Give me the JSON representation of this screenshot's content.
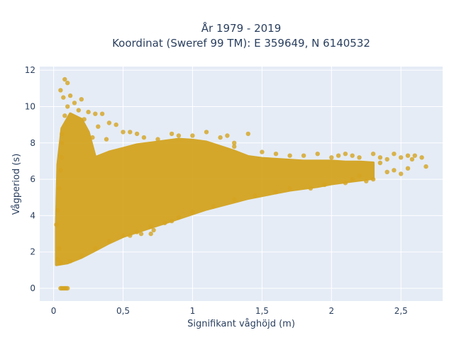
{
  "chart_data": {
    "type": "scatter",
    "title_line1": "År 1979 - 2019",
    "title_line2": "Koordinat (Sweref 99 TM): E 359649, N 6140532",
    "xlabel": "Signifikant våghöjd (m)",
    "ylabel": "Vågperiod (s)",
    "xlim": [
      -0.1,
      2.8
    ],
    "ylim": [
      -0.7,
      12.2
    ],
    "x_ticks": [
      0,
      0.5,
      1,
      1.5,
      2,
      2.5
    ],
    "x_tick_labels": [
      "0",
      "0,5",
      "1",
      "1,5",
      "2",
      "2,5"
    ],
    "y_ticks": [
      0,
      2,
      4,
      6,
      8,
      10,
      12
    ],
    "y_tick_labels": [
      "0",
      "2",
      "4",
      "6",
      "8",
      "10",
      "12"
    ],
    "grid": true,
    "legend": "none",
    "marker_color": "#d4a421",
    "background_color": "#e5ecf6",
    "series": [
      {
        "points": [
          [
            0.05,
            0.0
          ],
          [
            0.06,
            0.0
          ],
          [
            0.07,
            0.0
          ],
          [
            0.08,
            0.0
          ],
          [
            0.09,
            0.0
          ],
          [
            0.1,
            0.0
          ],
          [
            0.08,
            11.5
          ],
          [
            0.1,
            11.3
          ],
          [
            0.05,
            10.9
          ],
          [
            0.12,
            10.6
          ],
          [
            0.07,
            10.5
          ],
          [
            0.2,
            10.4
          ],
          [
            0.15,
            10.2
          ],
          [
            0.1,
            10.0
          ],
          [
            0.18,
            9.8
          ],
          [
            0.25,
            9.7
          ],
          [
            0.3,
            9.6
          ],
          [
            0.35,
            9.6
          ],
          [
            0.08,
            9.5
          ],
          [
            0.22,
            9.3
          ],
          [
            0.4,
            9.1
          ],
          [
            0.45,
            9.0
          ],
          [
            0.32,
            8.9
          ],
          [
            0.5,
            8.6
          ],
          [
            0.06,
            8.5
          ],
          [
            0.55,
            8.6
          ],
          [
            0.6,
            8.5
          ],
          [
            0.28,
            8.3
          ],
          [
            0.38,
            8.2
          ],
          [
            0.65,
            8.3
          ],
          [
            0.75,
            8.2
          ],
          [
            0.85,
            8.5
          ],
          [
            0.9,
            8.4
          ],
          [
            1.0,
            8.4
          ],
          [
            1.1,
            8.6
          ],
          [
            1.2,
            8.3
          ],
          [
            1.25,
            8.4
          ],
          [
            1.4,
            8.5
          ],
          [
            1.3,
            8.0
          ],
          [
            1.3,
            7.8
          ],
          [
            1.5,
            7.5
          ],
          [
            1.6,
            7.4
          ],
          [
            1.7,
            7.3
          ],
          [
            1.8,
            7.3
          ],
          [
            1.9,
            7.4
          ],
          [
            2.0,
            7.2
          ],
          [
            2.05,
            7.3
          ],
          [
            2.1,
            7.4
          ],
          [
            2.15,
            7.3
          ],
          [
            2.2,
            7.2
          ],
          [
            2.3,
            7.4
          ],
          [
            2.35,
            7.2
          ],
          [
            2.4,
            7.1
          ],
          [
            2.45,
            7.4
          ],
          [
            2.5,
            7.2
          ],
          [
            2.55,
            7.3
          ],
          [
            2.58,
            7.1
          ],
          [
            2.6,
            7.3
          ],
          [
            2.65,
            7.2
          ],
          [
            2.68,
            6.7
          ],
          [
            2.5,
            6.3
          ],
          [
            2.45,
            6.5
          ],
          [
            2.4,
            6.4
          ],
          [
            2.55,
            6.6
          ],
          [
            2.35,
            6.9
          ],
          [
            2.3,
            6.0
          ],
          [
            2.2,
            6.2
          ],
          [
            2.25,
            5.9
          ],
          [
            2.15,
            6.0
          ],
          [
            2.1,
            5.8
          ],
          [
            1.95,
            5.7
          ],
          [
            1.85,
            5.5
          ],
          [
            1.7,
            5.5
          ],
          [
            1.6,
            5.3
          ],
          [
            1.45,
            5.1
          ],
          [
            1.3,
            4.9
          ],
          [
            1.15,
            4.5
          ],
          [
            1.0,
            4.2
          ],
          [
            0.9,
            3.9
          ],
          [
            0.8,
            3.6
          ],
          [
            0.7,
            3.4
          ],
          [
            0.6,
            3.1
          ],
          [
            0.5,
            2.9
          ],
          [
            0.4,
            2.6
          ],
          [
            0.3,
            2.2
          ],
          [
            0.2,
            1.8
          ],
          [
            0.12,
            1.5
          ],
          [
            0.05,
            1.4
          ],
          [
            0.03,
            1.6
          ],
          [
            0.04,
            2.2
          ],
          [
            0.02,
            3.5
          ],
          [
            0.03,
            4.3
          ],
          [
            0.04,
            5.5
          ],
          [
            0.05,
            6.5
          ],
          [
            0.06,
            7.2
          ],
          [
            0.06,
            8.0
          ],
          [
            0.7,
            3.0
          ],
          [
            0.63,
            3.0
          ],
          [
            0.72,
            3.2
          ],
          [
            0.55,
            2.9
          ],
          [
            0.85,
            3.7
          ]
        ]
      }
    ]
  }
}
